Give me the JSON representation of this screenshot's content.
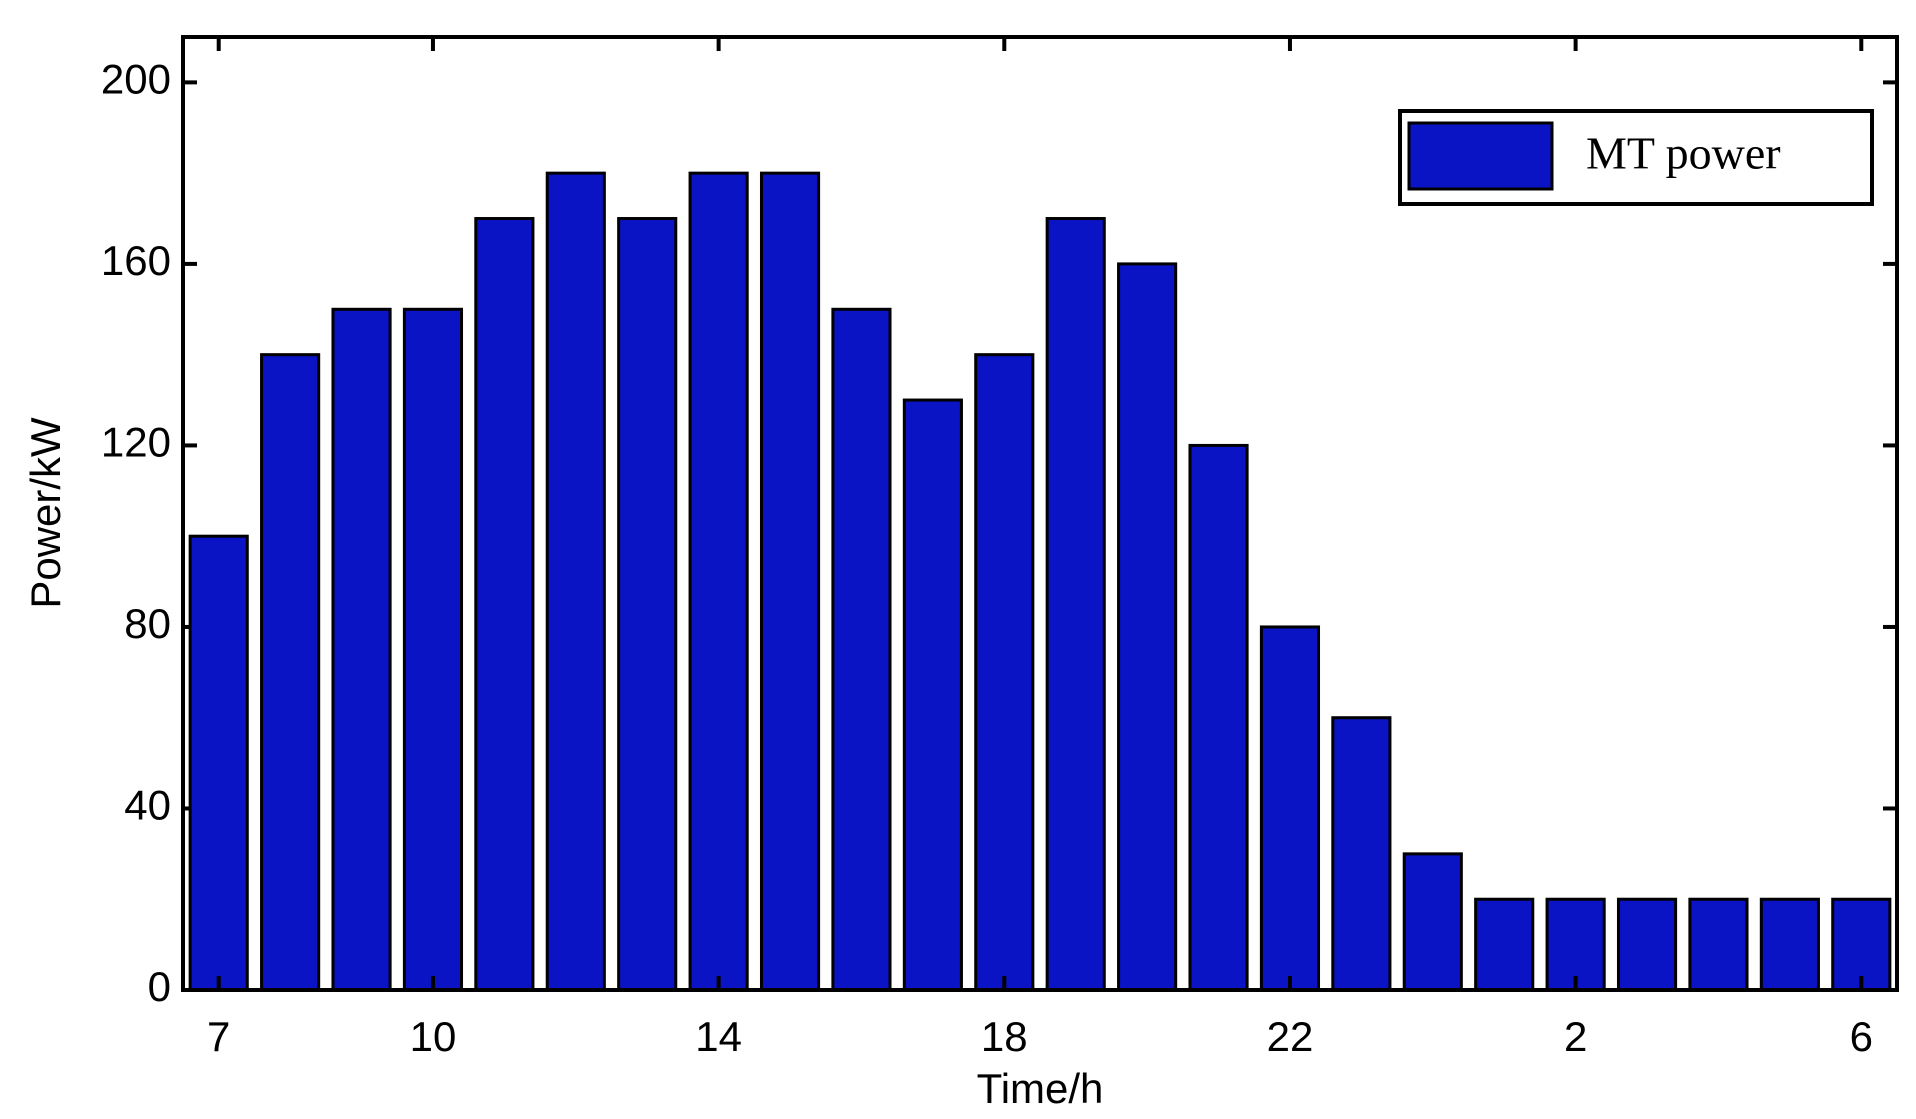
{
  "chart_data": {
    "type": "bar",
    "x_label": "Time/h",
    "y_label": "Power/kW",
    "categories": [
      "7",
      null,
      null,
      "10",
      null,
      null,
      null,
      "14",
      null,
      null,
      null,
      "18",
      null,
      null,
      null,
      "22",
      null,
      null,
      null,
      "2",
      null,
      null,
      null,
      "6"
    ],
    "series": [
      {
        "name": "MT power",
        "color": "#0a14c4",
        "values": [
          100,
          140,
          150,
          150,
          170,
          180,
          170,
          180,
          180,
          150,
          130,
          140,
          170,
          160,
          120,
          80,
          60,
          30,
          20,
          20,
          20,
          20,
          20,
          20
        ]
      }
    ],
    "ylim": [
      0,
      210
    ],
    "yticks": [
      0,
      40,
      80,
      120,
      160,
      200
    ],
    "grid": false,
    "legend": "upper right"
  }
}
